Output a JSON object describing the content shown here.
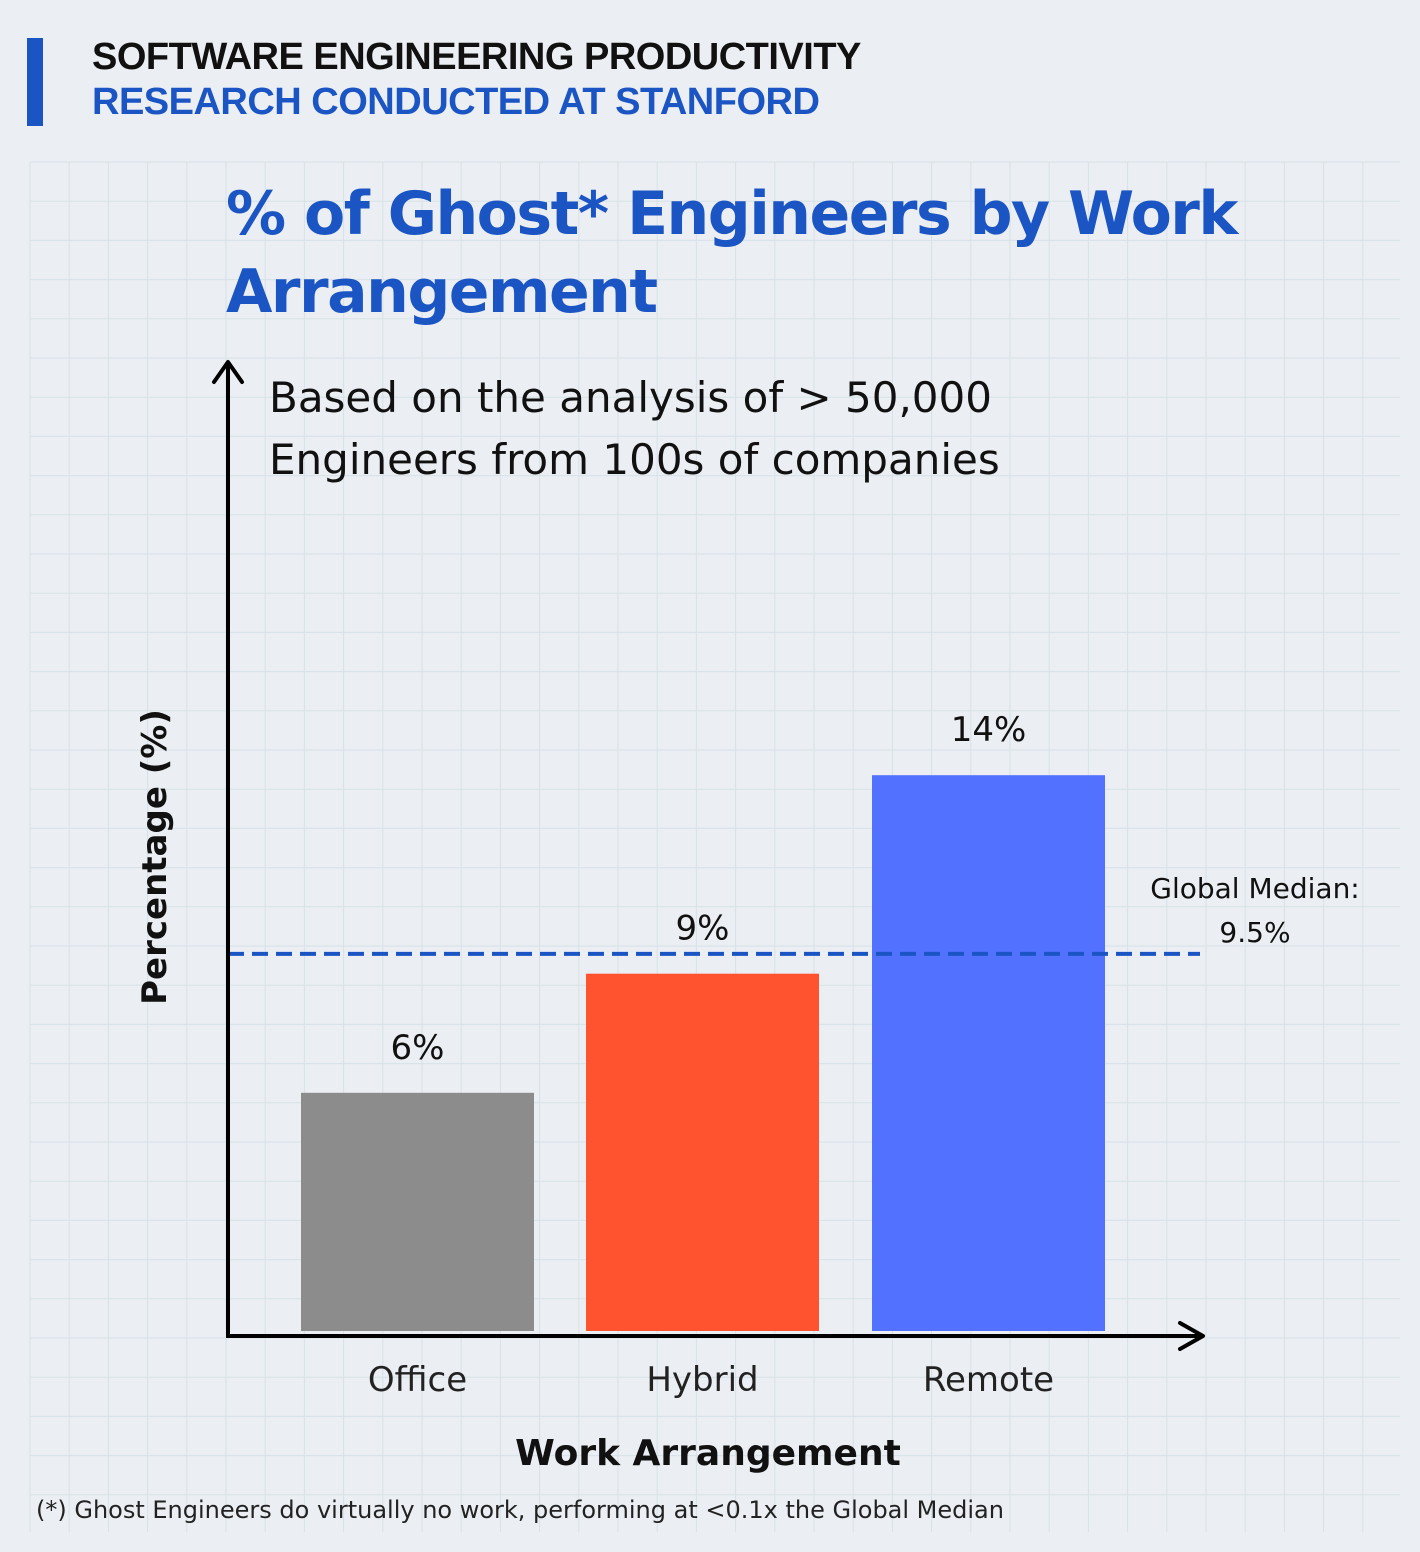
{
  "header": {
    "line1": "SOFTWARE ENGINEERING PRODUCTIVITY",
    "line2": "RESEARCH CONDUCTED AT STANFORD"
  },
  "chart_data": {
    "type": "bar",
    "title_lines": [
      "% of Ghost* Engineers by Work",
      "Arrangement"
    ],
    "subtitle_lines": [
      "Based on the analysis of > 50,000",
      "Engineers from 100s of companies"
    ],
    "xlabel": "Work Arrangement",
    "ylabel": "Percentage (%)",
    "categories": [
      "Office",
      "Hybrid",
      "Remote"
    ],
    "values": [
      6,
      9,
      14
    ],
    "value_labels": [
      "6%",
      "9%",
      "14%"
    ],
    "colors": [
      "#8c8c8c",
      "#ff5330",
      "#5271ff"
    ],
    "reference_line": {
      "value": 9.5,
      "label_lines": [
        "Global Median:",
        "9.5%"
      ],
      "style": "dashed",
      "color": "#1b55c4"
    },
    "grid": true,
    "footnote": "(*) Ghost Engineers do virtually no work, performing at <0.1x the Global Median"
  }
}
